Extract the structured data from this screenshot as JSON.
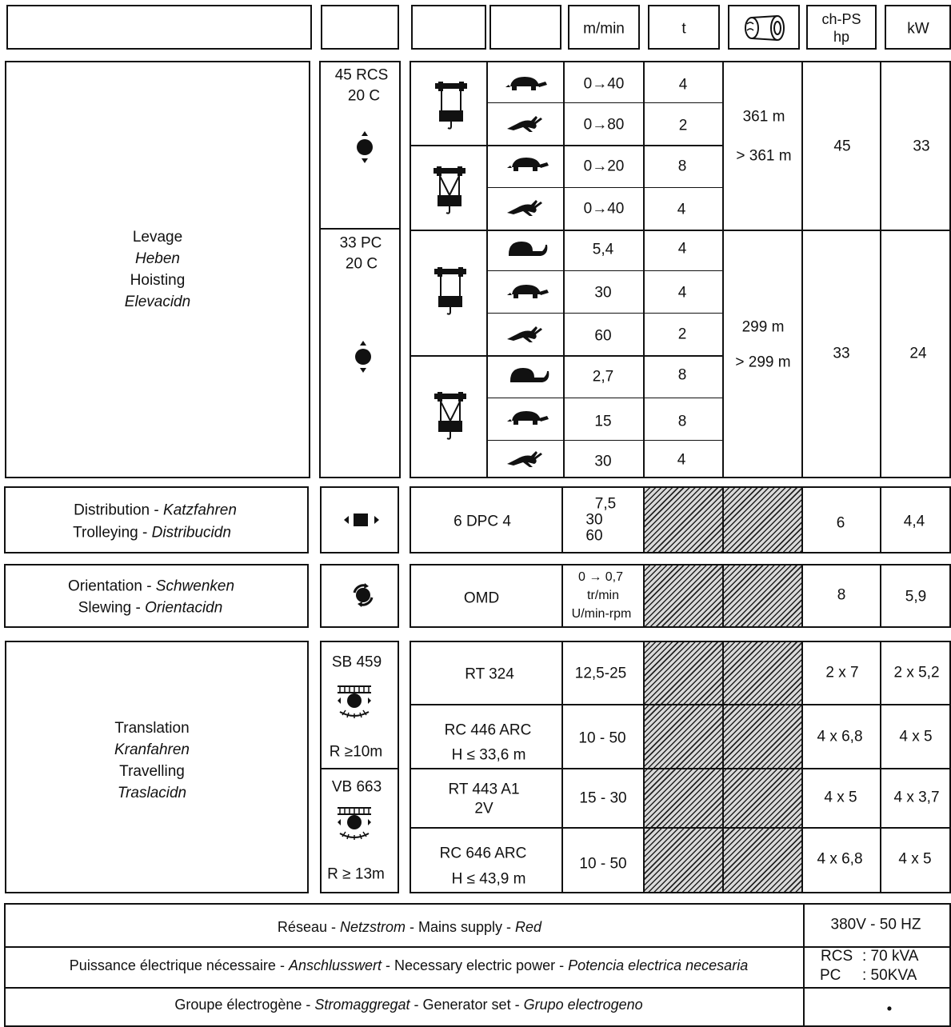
{
  "header": {
    "speed_unit": "m/min",
    "load_unit": "t",
    "drum_icon": "cable-drum-icon",
    "power_hp_line1": "ch-PS",
    "power_hp_line2": "hp",
    "power_kw": "kW"
  },
  "levage": {
    "labels": [
      "Levage",
      "Heben",
      "Hoisting",
      "Elevacidn"
    ],
    "winch1": {
      "model_line1": "45 RCS",
      "model_line2": "20 C",
      "rows": [
        {
          "icon": "turtle-icon",
          "speed": "0→40",
          "t": "4"
        },
        {
          "icon": "hare-icon",
          "speed": "0→80",
          "t": "2"
        },
        {
          "icon": "turtle-icon",
          "speed": "0→20",
          "t": "8"
        },
        {
          "icon": "hare-icon",
          "speed": "0→40",
          "t": "4"
        }
      ],
      "cable1": "361 m",
      "cable2": "> 361 m",
      "hp": "45",
      "kw": "33"
    },
    "winch2": {
      "model_line1": "33 PC",
      "model_line2": "20 C",
      "rows": [
        {
          "icon": "snail-icon",
          "speed": "5,4",
          "t": "4"
        },
        {
          "icon": "turtle-icon",
          "speed": "30",
          "t": "4"
        },
        {
          "icon": "hare-icon",
          "speed": "60",
          "t": "2"
        },
        {
          "icon": "snail-icon",
          "speed": "2,7",
          "t": "8"
        },
        {
          "icon": "turtle-icon",
          "speed": "15",
          "t": "8"
        },
        {
          "icon": "hare-icon",
          "speed": "30",
          "t": "4"
        }
      ],
      "cable1": "299 m",
      "cable2": "> 299 m",
      "hp": "33",
      "kw": "24"
    }
  },
  "distribution": {
    "line1a": "Distribution",
    "line1b": "Katzfahren",
    "line2a": "Trolleying",
    "line2b": "Distribucidn",
    "model": "6 DPC 4",
    "speeds": [
      "7,5",
      "30",
      "60"
    ],
    "hp": "6",
    "kw": "4,4"
  },
  "orientation": {
    "line1a": "Orientation",
    "line1b": "Schwenken",
    "line2a": "Slewing",
    "line2b": "Orientacidn",
    "model": "OMD",
    "speed_line1": "0 → 0,7",
    "speed_line2": "tr/min",
    "speed_line3": "U/min-rpm",
    "hp": "8",
    "kw": "5,9"
  },
  "translation": {
    "labels": [
      "Translation",
      "Kranfahren",
      "Travelling",
      "Traslacidn"
    ],
    "bogie1": {
      "model": "SB 459",
      "radius": "R ≥10m"
    },
    "bogie2": {
      "model": "VB 663",
      "radius": "R ≥ 13m"
    },
    "rows": [
      {
        "line1": "RT 324",
        "line2": "",
        "speed": "12,5-25",
        "hp": "2 x 7",
        "kw": "2 x 5,2"
      },
      {
        "line1": "RC 446 ARC",
        "line2": "H ≤ 33,6 m",
        "speed": "10 - 50",
        "hp": "4 x 6,8",
        "kw": "4 x 5"
      },
      {
        "line1": "RT 443 A1",
        "line2": "2V",
        "speed": "15 - 30",
        "hp": "4 x 5",
        "kw": "4 x 3,7"
      },
      {
        "line1": "RC 646 ARC",
        "line2": "H ≤ 43,9 m",
        "speed": "10 - 50",
        "hp": "4 x 6,8",
        "kw": "4 x 5"
      }
    ]
  },
  "footer": {
    "mains": {
      "a": "Réseau",
      "b": "Netzstrom",
      "c": "Mains supply",
      "d": "Red",
      "value": "380V - 50 HZ"
    },
    "power": {
      "a": "Puissance électrique nécessaire",
      "b": "Anschlusswert",
      "c": "Necessary electric power",
      "d": "Potencia electrica necesaria",
      "v1_label": "RCS",
      "v1": ": 70 kVA",
      "v2_label": "PC",
      "v2": ": 50KVA"
    },
    "generator": {
      "a": "Groupe électrogène",
      "b": "Stromaggregat",
      "c": "Generator set",
      "d": "Grupo electrogeno",
      "value": "•"
    },
    "separator": " - "
  }
}
